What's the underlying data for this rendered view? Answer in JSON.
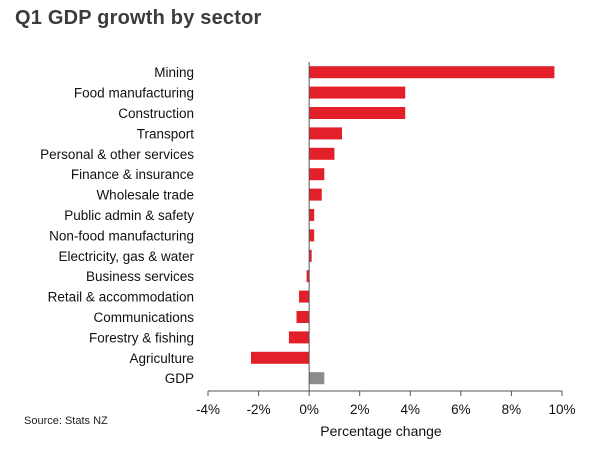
{
  "title": "Q1 GDP growth by sector",
  "source": "Source: Stats NZ",
  "colors": {
    "sector": "#e3202a",
    "total": "#8c8c8c",
    "axis": "#555555"
  },
  "chart_data": {
    "type": "bar",
    "orientation": "horizontal",
    "title": "Q1 GDP growth by sector",
    "xlabel": "Percentage change",
    "ylabel": "",
    "xlim": [
      -4,
      10
    ],
    "xticks": [
      "-4%",
      "-2%",
      "0%",
      "2%",
      "4%",
      "6%",
      "8%",
      "10%"
    ],
    "xtick_values": [
      -4,
      -2,
      0,
      2,
      4,
      6,
      8,
      10
    ],
    "grid": false,
    "categories": [
      "Mining",
      "Food manufacturing",
      "Construction",
      "Transport",
      "Personal & other services",
      "Finance & insurance",
      "Wholesale trade",
      "Public admin & safety",
      "Non-food manufacturing",
      "Electricity, gas & water",
      "Business services",
      "Retail & accommodation",
      "Communications",
      "Forestry & fishing",
      "Agriculture",
      "GDP"
    ],
    "values": [
      9.7,
      3.8,
      3.8,
      1.3,
      1.0,
      0.6,
      0.5,
      0.2,
      0.2,
      0.1,
      -0.1,
      -0.4,
      -0.5,
      -0.8,
      -2.3,
      0.6
    ],
    "highlight": "GDP"
  }
}
